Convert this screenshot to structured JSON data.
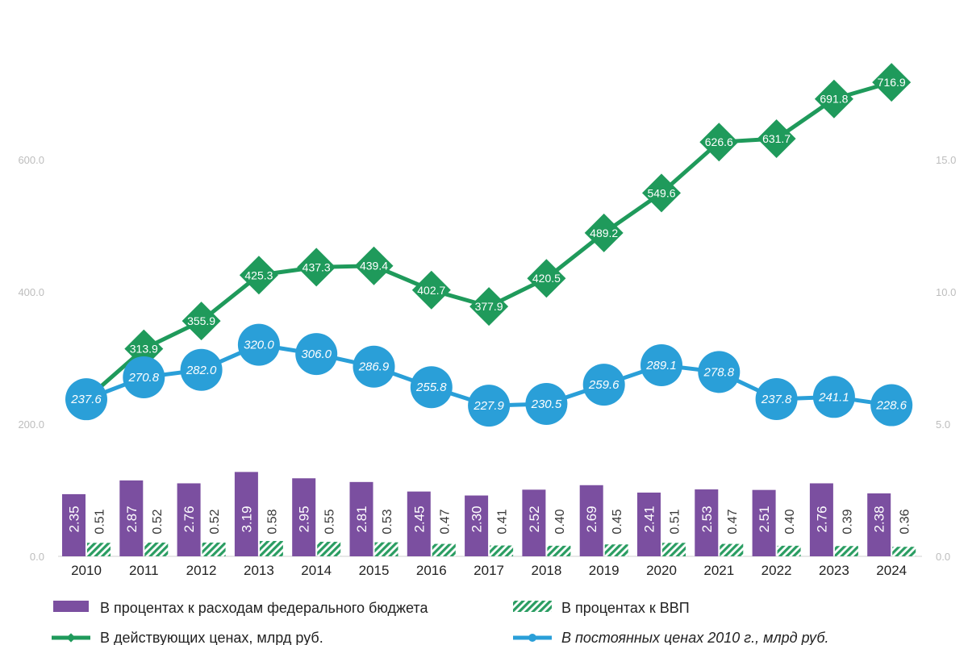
{
  "chart_data": {
    "type": "bar+line",
    "categories": [
      "2010",
      "2011",
      "2012",
      "2013",
      "2014",
      "2015",
      "2016",
      "2017",
      "2018",
      "2019",
      "2020",
      "2021",
      "2022",
      "2023",
      "2024"
    ],
    "left_axis": {
      "ylim": [
        0,
        750
      ],
      "ticks": [
        "0.0",
        "200.0",
        "400.0",
        "600.0"
      ],
      "tick_values": [
        0,
        200,
        400,
        600
      ]
    },
    "right_axis": {
      "ylim": [
        0,
        18.75
      ],
      "ticks": [
        "0.0",
        "5.0",
        "10.0",
        "15.0"
      ],
      "tick_values": [
        0,
        5,
        10,
        15
      ]
    },
    "series": [
      {
        "name": "В процентах к расходам федерального бюджета",
        "type": "bar",
        "axis": "right",
        "color": "#7b4fa0",
        "values": [
          2.35,
          2.87,
          2.76,
          3.19,
          2.95,
          2.81,
          2.45,
          2.3,
          2.52,
          2.69,
          2.41,
          2.53,
          2.51,
          2.76,
          2.38
        ],
        "labels": [
          "2.35",
          "2.87",
          "2.76",
          "3.19",
          "2.95",
          "2.81",
          "2.45",
          "2.30",
          "2.52",
          "2.69",
          "2.41",
          "2.53",
          "2.51",
          "2.76",
          "2.38"
        ]
      },
      {
        "name": "В процентах к ВВП",
        "type": "bar",
        "axis": "right",
        "color": "#2a9d62",
        "pattern": "hatched",
        "values": [
          0.51,
          0.52,
          0.52,
          0.58,
          0.55,
          0.53,
          0.47,
          0.41,
          0.4,
          0.45,
          0.51,
          0.47,
          0.4,
          0.39,
          0.36
        ],
        "labels": [
          "0.51",
          "0.52",
          "0.52",
          "0.58",
          "0.55",
          "0.53",
          "0.47",
          "0.41",
          "0.40",
          "0.45",
          "0.51",
          "0.47",
          "0.40",
          "0.39",
          "0.36"
        ]
      },
      {
        "name": "В действующих ценах, млрд руб.",
        "type": "line",
        "axis": "left",
        "color": "#1f9a5b",
        "marker": "diamond",
        "values": [
          237.6,
          313.9,
          355.9,
          425.3,
          437.3,
          439.4,
          402.7,
          377.9,
          420.5,
          489.2,
          549.6,
          626.6,
          631.7,
          691.8,
          716.9
        ],
        "labels": [
          null,
          "313.9",
          "355.9",
          "425.3",
          "437.3",
          "439.4",
          "402.7",
          "377.9",
          "420.5",
          "489.2",
          "549.6",
          "626.6",
          "631.7",
          "691.8",
          "716.9"
        ]
      },
      {
        "name": "В постоянных ценах 2010 г., млрд руб.",
        "type": "line",
        "axis": "left",
        "color": "#2a9fd8",
        "marker": "circle",
        "values": [
          237.6,
          270.8,
          282.0,
          320.0,
          306.0,
          286.9,
          255.8,
          227.9,
          230.5,
          259.6,
          289.1,
          278.8,
          237.8,
          241.1,
          228.6
        ],
        "labels": [
          "237.6",
          "270.8",
          "282.0",
          "320.0",
          "306.0",
          "286.9",
          "255.8",
          "227.9",
          "230.5",
          "259.6",
          "289.1",
          "278.8",
          "237.8",
          "241.1",
          "228.6"
        ]
      }
    ],
    "legend_position": "bottom"
  },
  "legend": {
    "budget": "В процентах к расходам федерального бюджета",
    "gdp": "В процентах к ВВП",
    "current": "В действующих ценах, млрд руб.",
    "constant": "В постоянных ценах 2010 г., млрд руб."
  }
}
